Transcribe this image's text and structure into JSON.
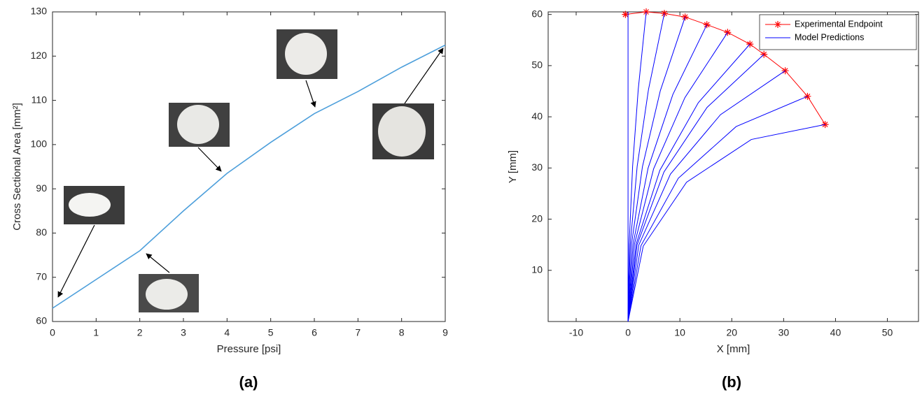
{
  "chart_data": [
    {
      "type": "line",
      "caption": "(a)",
      "xlabel": "Pressure [psi]",
      "ylabel": "Cross Sectional Area [mm²]",
      "x": [
        0,
        1,
        2,
        3,
        4,
        5,
        6,
        7,
        8,
        9
      ],
      "values": [
        63,
        69.5,
        76,
        85,
        93.5,
        100.5,
        107,
        112,
        117.5,
        122.5
      ],
      "color": "#4d9fdb",
      "xlim": [
        0,
        9
      ],
      "xticks": [
        0,
        1,
        2,
        3,
        4,
        5,
        6,
        7,
        8,
        9
      ],
      "ylim": [
        60,
        130
      ],
      "yticks": [
        60,
        70,
        80,
        90,
        100,
        110,
        120,
        130
      ],
      "grid": false
    },
    {
      "type": "line",
      "caption": "(b)",
      "xlabel": "X [mm]",
      "ylabel": "Y [mm]",
      "legend": "upper right",
      "series": [
        {
          "name": "Experimental Endpoint",
          "color": "#ff0000",
          "marker": "*",
          "x": [
            -0.5,
            3.5,
            7,
            11,
            15.2,
            19.2,
            23.5,
            26.2,
            30.3,
            34.6,
            38
          ],
          "values": [
            60,
            60.5,
            60.2,
            59.5,
            58,
            56.5,
            54.2,
            52.2,
            49,
            44,
            38.5
          ]
        },
        {
          "name": "Model Predictions",
          "color": "#0000ff",
          "lines": [
            {
              "x": [
                0,
                0
              ],
              "values": [
                0,
                60.5
              ]
            },
            {
              "x": [
                0,
                0.22,
                0.88,
                1.97,
                3.5
              ],
              "values": [
                0,
                15.16,
                30.3,
                45.4,
                60.5
              ]
            },
            {
              "x": [
                0,
                0.44,
                1.76,
                3.94,
                7
              ],
              "values": [
                0,
                15.18,
                30.32,
                45.32,
                60.2
              ]
            },
            {
              "x": [
                0,
                0.69,
                2.78,
                6.22,
                11
              ],
              "values": [
                0,
                15.19,
                30.27,
                45.08,
                59.5
              ]
            },
            {
              "x": [
                0,
                0.97,
                3.87,
                8.64,
                15.2
              ],
              "values": [
                0,
                15.12,
                29.99,
                44.36,
                58
              ]
            },
            {
              "x": [
                0,
                1.24,
                4.93,
                10.96,
                19.2
              ],
              "values": [
                0,
                15.11,
                29.83,
                43.74,
                56.5
              ]
            },
            {
              "x": [
                0,
                1.55,
                6.13,
                13.55,
                23.5
              ],
              "values": [
                0,
                15.09,
                29.54,
                42.76,
                54.2
              ]
            },
            {
              "x": [
                0,
                1.75,
                6.92,
                15.23,
                26.2
              ],
              "values": [
                0,
                15.01,
                29.21,
                41.83,
                52.2
              ]
            },
            {
              "x": [
                0,
                2.08,
                8.17,
                17.82,
                30.3
              ],
              "values": [
                0,
                14.96,
                28.79,
                40.41,
                49
              ]
            },
            {
              "x": [
                0,
                2.49,
                9.69,
                20.84,
                34.6
              ],
              "values": [
                0,
                14.81,
                27.99,
                38.09,
                44
              ]
            },
            {
              "x": [
                0,
                2.93,
                11.28,
                23.77,
                38
              ],
              "values": [
                0,
                14.73,
                27.22,
                35.57,
                38.5
              ]
            }
          ]
        }
      ],
      "xlim": [
        -15.4,
        56
      ],
      "xticks": [
        -10,
        0,
        10,
        20,
        30,
        40,
        50
      ],
      "ylim": [
        0,
        60.5
      ],
      "yticks": [
        10,
        20,
        30,
        40,
        50,
        60
      ],
      "grid": false
    }
  ]
}
